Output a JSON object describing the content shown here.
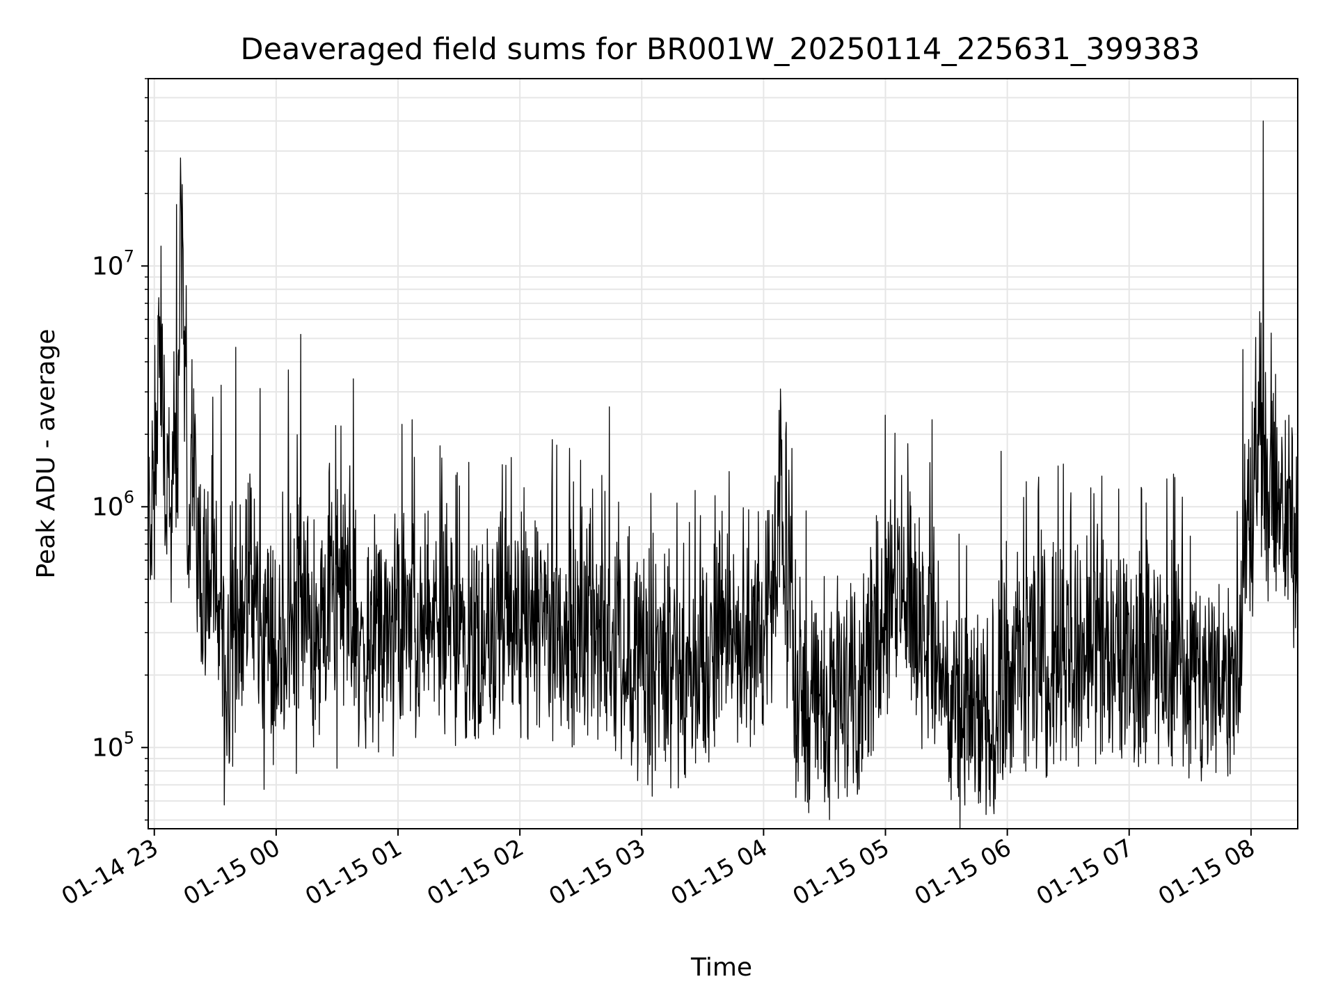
{
  "chart_data": {
    "type": "line",
    "title": "Deaveraged field sums for BR001W_20250114_225631_399383",
    "xlabel": "Time",
    "ylabel": "Peak ADU - average",
    "yscale": "log",
    "ylim": [
      46000,
      60000000
    ],
    "xlim": [
      "2025-01-14 22:57",
      "2025-01-15 08:23"
    ],
    "grid": true,
    "line_color": "#000000",
    "x_ticks": [
      {
        "label": "01-14 23",
        "time": "2025-01-14 23:00"
      },
      {
        "label": "01-15 00",
        "time": "2025-01-15 00:00"
      },
      {
        "label": "01-15 01",
        "time": "2025-01-15 01:00"
      },
      {
        "label": "01-15 02",
        "time": "2025-01-15 02:00"
      },
      {
        "label": "01-15 03",
        "time": "2025-01-15 03:00"
      },
      {
        "label": "01-15 04",
        "time": "2025-01-15 04:00"
      },
      {
        "label": "01-15 05",
        "time": "2025-01-15 05:00"
      },
      {
        "label": "01-15 06",
        "time": "2025-01-15 06:00"
      },
      {
        "label": "01-15 07",
        "time": "2025-01-15 07:00"
      },
      {
        "label": "01-15 08",
        "time": "2025-01-15 08:00"
      }
    ],
    "y_ticks": [
      {
        "base": "10",
        "exp": "5",
        "value": 100000
      },
      {
        "base": "10",
        "exp": "6",
        "value": 1000000
      },
      {
        "base": "10",
        "exp": "7",
        "value": 10000000
      }
    ],
    "series": [
      {
        "name": "",
        "x": [
          "2025-01-14 22:57",
          "2025-01-14 23:00",
          "2025-01-14 23:03",
          "2025-01-14 23:05",
          "2025-01-14 23:08",
          "2025-01-14 23:11",
          "2025-01-14 23:13",
          "2025-01-14 23:16",
          "2025-01-14 23:19",
          "2025-01-14 23:22",
          "2025-01-14 23:25",
          "2025-01-14 23:28",
          "2025-01-14 23:31",
          "2025-01-14 23:35",
          "2025-01-14 23:40",
          "2025-01-14 23:45",
          "2025-01-14 23:50",
          "2025-01-14 23:54",
          "2025-01-14 23:58",
          "2025-01-15 00:03",
          "2025-01-15 00:07",
          "2025-01-15 00:12",
          "2025-01-15 00:17",
          "2025-01-15 00:22",
          "2025-01-15 00:27",
          "2025-01-15 00:32",
          "2025-01-15 00:37",
          "2025-01-15 00:42",
          "2025-01-15 00:47",
          "2025-01-15 00:52",
          "2025-01-15 00:57",
          "2025-01-15 01:02",
          "2025-01-15 01:05",
          "2025-01-15 01:10",
          "2025-01-15 01:15",
          "2025-01-15 01:20",
          "2025-01-15 01:25",
          "2025-01-15 01:30",
          "2025-01-15 01:35",
          "2025-01-15 01:40",
          "2025-01-15 01:45",
          "2025-01-15 01:50",
          "2025-01-15 01:55",
          "2025-01-15 02:00",
          "2025-01-15 02:05",
          "2025-01-15 02:10",
          "2025-01-15 02:15",
          "2025-01-15 02:20",
          "2025-01-15 02:25",
          "2025-01-15 02:30",
          "2025-01-15 02:35",
          "2025-01-15 02:40",
          "2025-01-15 02:45",
          "2025-01-15 02:50",
          "2025-01-15 02:55",
          "2025-01-15 03:00",
          "2025-01-15 03:05",
          "2025-01-15 03:10",
          "2025-01-15 03:15",
          "2025-01-15 03:20",
          "2025-01-15 03:25",
          "2025-01-15 03:30",
          "2025-01-15 03:35",
          "2025-01-15 03:40",
          "2025-01-15 03:45",
          "2025-01-15 03:50",
          "2025-01-15 03:55",
          "2025-01-15 04:00",
          "2025-01-15 04:05",
          "2025-01-15 04:08",
          "2025-01-15 04:12",
          "2025-01-15 04:17",
          "2025-01-15 04:22",
          "2025-01-15 04:27",
          "2025-01-15 04:32",
          "2025-01-15 04:37",
          "2025-01-15 04:42",
          "2025-01-15 04:47",
          "2025-01-15 04:52",
          "2025-01-15 04:57",
          "2025-01-15 05:00",
          "2025-01-15 05:05",
          "2025-01-15 05:10",
          "2025-01-15 05:15",
          "2025-01-15 05:20",
          "2025-01-15 05:25",
          "2025-01-15 05:30",
          "2025-01-15 05:35",
          "2025-01-15 05:40",
          "2025-01-15 05:45",
          "2025-01-15 05:50",
          "2025-01-15 05:55",
          "2025-01-15 06:00",
          "2025-01-15 06:05",
          "2025-01-15 06:10",
          "2025-01-15 06:15",
          "2025-01-15 06:20",
          "2025-01-15 06:25",
          "2025-01-15 06:30",
          "2025-01-15 06:35",
          "2025-01-15 06:40",
          "2025-01-15 06:45",
          "2025-01-15 06:50",
          "2025-01-15 06:55",
          "2025-01-15 07:00",
          "2025-01-15 07:05",
          "2025-01-15 07:10",
          "2025-01-15 07:15",
          "2025-01-15 07:20",
          "2025-01-15 07:25",
          "2025-01-15 07:30",
          "2025-01-15 07:35",
          "2025-01-15 07:40",
          "2025-01-15 07:45",
          "2025-01-15 07:48",
          "2025-01-15 07:51",
          "2025-01-15 07:54",
          "2025-01-15 07:57",
          "2025-01-15 08:00",
          "2025-01-15 08:02",
          "2025-01-15 08:05",
          "2025-01-15 08:08",
          "2025-01-15 08:11",
          "2025-01-15 08:14",
          "2025-01-15 08:17",
          "2025-01-15 08:20",
          "2025-01-15 08:23"
        ],
        "y": [
          800000,
          1300000,
          6000000,
          1500000,
          900000,
          1000000,
          18000000,
          1200000,
          1700000,
          600000,
          500000,
          550000,
          350000,
          180000,
          300000,
          450000,
          400000,
          320000,
          260000,
          220000,
          350000,
          450000,
          300000,
          280000,
          400000,
          500000,
          350000,
          260000,
          220000,
          300000,
          280000,
          350000,
          320000,
          280000,
          330000,
          360000,
          340000,
          300000,
          290000,
          320000,
          300000,
          330000,
          310000,
          300000,
          290000,
          310000,
          330000,
          300000,
          320000,
          340000,
          310000,
          290000,
          300000,
          260000,
          240000,
          220000,
          210000,
          230000,
          220000,
          200000,
          210000,
          230000,
          250000,
          270000,
          280000,
          290000,
          310000,
          320000,
          350000,
          1000000,
          400000,
          200000,
          160000,
          150000,
          170000,
          180000,
          190000,
          200000,
          260000,
          350000,
          400000,
          450000,
          500000,
          380000,
          300000,
          250000,
          180000,
          140000,
          130000,
          120000,
          130000,
          150000,
          200000,
          210000,
          230000,
          240000,
          250000,
          250000,
          260000,
          250000,
          260000,
          270000,
          260000,
          250000,
          240000,
          250000,
          240000,
          230000,
          230000,
          240000,
          220000,
          200000,
          190000,
          200000,
          210000,
          220000,
          230000,
          900000,
          1100000,
          1200000,
          1300000,
          1200000,
          1000000,
          900000,
          850000,
          820000,
          800000
        ]
      }
    ],
    "spikes": [
      {
        "x": "2025-01-15 08:06",
        "y": 40000000
      },
      {
        "x": "2025-01-14 23:11",
        "y": 18000000
      },
      {
        "x": "2025-01-14 23:02",
        "y": 6000000
      },
      {
        "x": "2025-01-15 00:12",
        "y": 5200000
      },
      {
        "x": "2025-01-15 08:05",
        "y": 5800000
      },
      {
        "x": "2025-01-15 07:56",
        "y": 4500000
      },
      {
        "x": "2025-01-14 23:40",
        "y": 4600000
      },
      {
        "x": "2025-01-15 00:06",
        "y": 3700000
      },
      {
        "x": "2025-01-15 00:38",
        "y": 3400000
      },
      {
        "x": "2025-01-14 23:33",
        "y": 3200000
      },
      {
        "x": "2025-01-14 23:52",
        "y": 3100000
      },
      {
        "x": "2025-01-15 02:44",
        "y": 2600000
      },
      {
        "x": "2025-01-15 05:00",
        "y": 2400000
      },
      {
        "x": "2025-01-15 05:23",
        "y": 2300000
      },
      {
        "x": "2025-01-15 01:07",
        "y": 2300000
      },
      {
        "x": "2025-01-15 01:02",
        "y": 2200000
      },
      {
        "x": "2025-01-15 04:11",
        "y": 2000000
      },
      {
        "x": "2025-01-15 02:16",
        "y": 1900000
      },
      {
        "x": "2025-01-15 05:57",
        "y": 1700000
      },
      {
        "x": "2025-01-15 03:43",
        "y": 1400000
      }
    ],
    "dips": [
      {
        "x": "2025-01-14 23:54",
        "y": 67000
      },
      {
        "x": "2025-01-15 04:16",
        "y": 62000
      },
      {
        "x": "2025-01-15 03:03",
        "y": 70000
      },
      {
        "x": "2025-01-15 03:18",
        "y": 68000
      },
      {
        "x": "2025-01-15 04:40",
        "y": 68000
      },
      {
        "x": "2025-01-15 05:32",
        "y": 75000
      },
      {
        "x": "2025-01-15 05:47",
        "y": 78000
      },
      {
        "x": "2025-01-15 00:10",
        "y": 78000
      },
      {
        "x": "2025-01-14 23:37",
        "y": 88000
      },
      {
        "x": "2025-01-15 07:35",
        "y": 88000
      },
      {
        "x": "2025-01-15 00:30",
        "y": 82000
      },
      {
        "x": "2025-01-15 01:50",
        "y": 120000
      }
    ]
  }
}
